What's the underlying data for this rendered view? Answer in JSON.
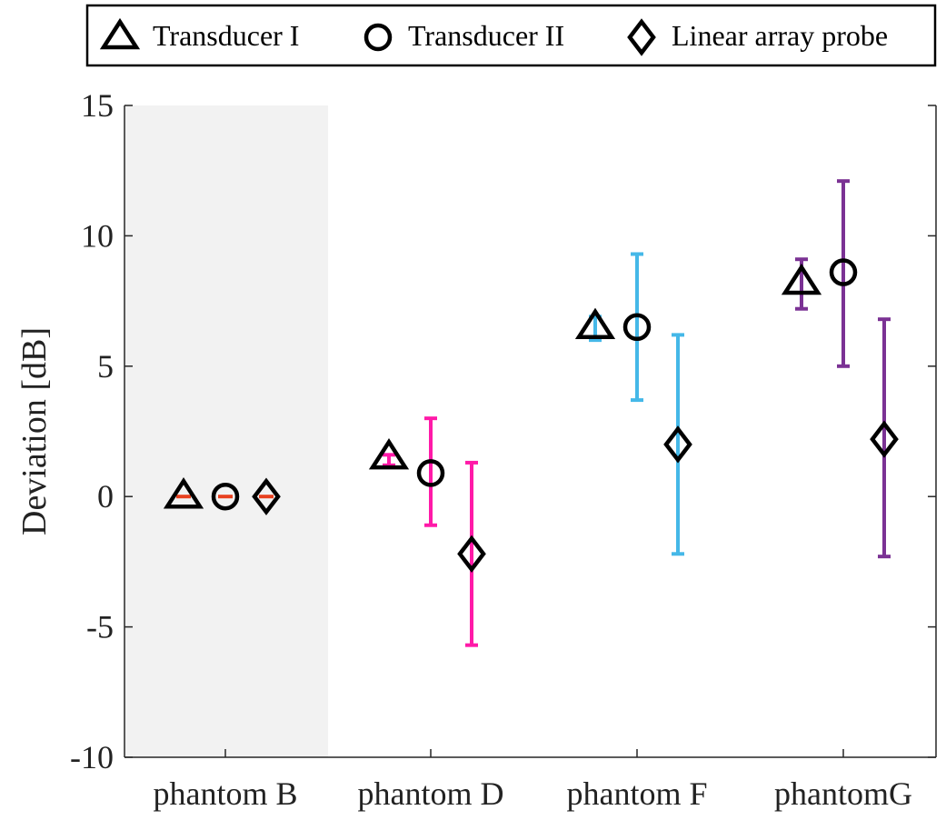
{
  "chart_data": {
    "type": "scatter",
    "title": "",
    "xlabel": "",
    "ylabel": "Deviation [dB]",
    "ylim": [
      -10,
      15
    ],
    "yticks": [
      -10,
      -5,
      0,
      5,
      10,
      15
    ],
    "ytick_labels": [
      "-10",
      "-5",
      "0",
      "5",
      "10",
      "15"
    ],
    "grid": false,
    "legend_position": "top, outside plot, horizontal",
    "categories": [
      "phantom B",
      "phantom D",
      "phantom F",
      "phantomG"
    ],
    "category_colors": [
      "#e8411f",
      "#ff1aa8",
      "#45b8e8",
      "#7b3294"
    ],
    "highlighted_category": "phantom B",
    "highlight_color": "#f2f2f2",
    "series": [
      {
        "name": "Transducer I",
        "marker": "triangle",
        "values": [
          0,
          1.5,
          6.5,
          8.2
        ],
        "error_low": [
          0,
          1.2,
          6.0,
          7.2
        ],
        "error_high": [
          0,
          1.6,
          6.9,
          9.1
        ]
      },
      {
        "name": "Transducer II",
        "marker": "circle",
        "values": [
          0,
          0.9,
          6.5,
          8.6
        ],
        "error_low": [
          0,
          -1.1,
          3.7,
          5.0
        ],
        "error_high": [
          0,
          3.0,
          9.3,
          12.1
        ]
      },
      {
        "name": "Linear array probe",
        "marker": "diamond",
        "values": [
          0,
          -2.2,
          2.0,
          2.2
        ],
        "error_low": [
          0,
          -5.7,
          -2.2,
          -2.3
        ],
        "error_high": [
          0,
          1.3,
          6.2,
          6.8
        ]
      }
    ]
  }
}
